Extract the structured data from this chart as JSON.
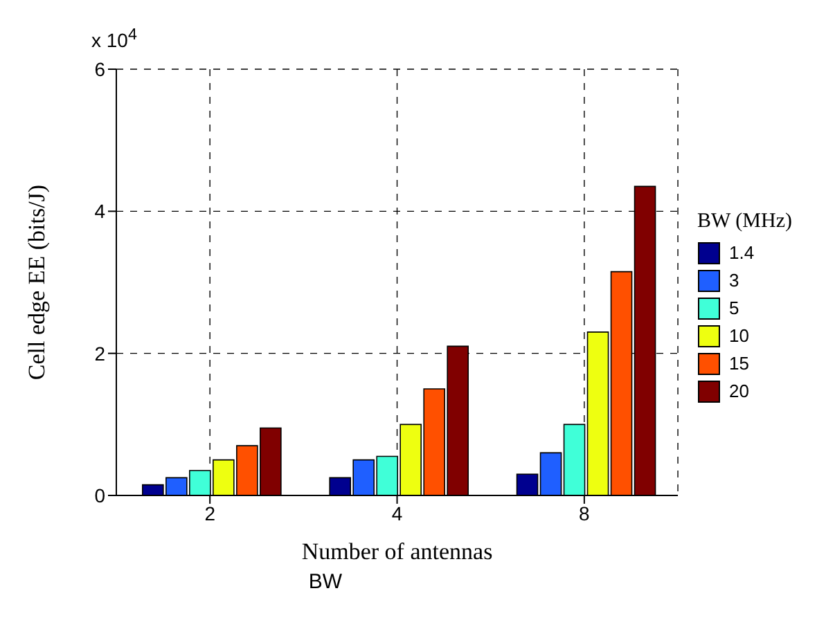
{
  "chart_data": {
    "type": "bar",
    "xlabel": "Number of antennas",
    "ylabel": "Cell edge EE (bits/J)",
    "legend_title": "BW (MHz)",
    "annotations": [
      "x 10$^{4}$",
      "BW"
    ],
    "categories": [
      "2",
      "4",
      "8"
    ],
    "series": [
      {
        "name": "1.4",
        "color": "#00008f",
        "values": [
          0.15,
          0.25,
          0.3
        ]
      },
      {
        "name": "3",
        "color": "#1f5fff",
        "values": [
          0.25,
          0.5,
          0.6
        ]
      },
      {
        "name": "5",
        "color": "#40ffd8",
        "values": [
          0.35,
          0.55,
          1.0
        ]
      },
      {
        "name": "10",
        "color": "#eeff10",
        "values": [
          0.5,
          1.0,
          2.3
        ]
      },
      {
        "name": "15",
        "color": "#ff5000",
        "values": [
          0.7,
          1.5,
          3.15
        ]
      },
      {
        "name": "20",
        "color": "#800000",
        "values": [
          0.95,
          2.1,
          4.35
        ]
      }
    ],
    "ylim": [
      0,
      6
    ],
    "yticks": [
      0,
      2,
      4,
      6
    ],
    "grid": true,
    "legend": "right"
  }
}
